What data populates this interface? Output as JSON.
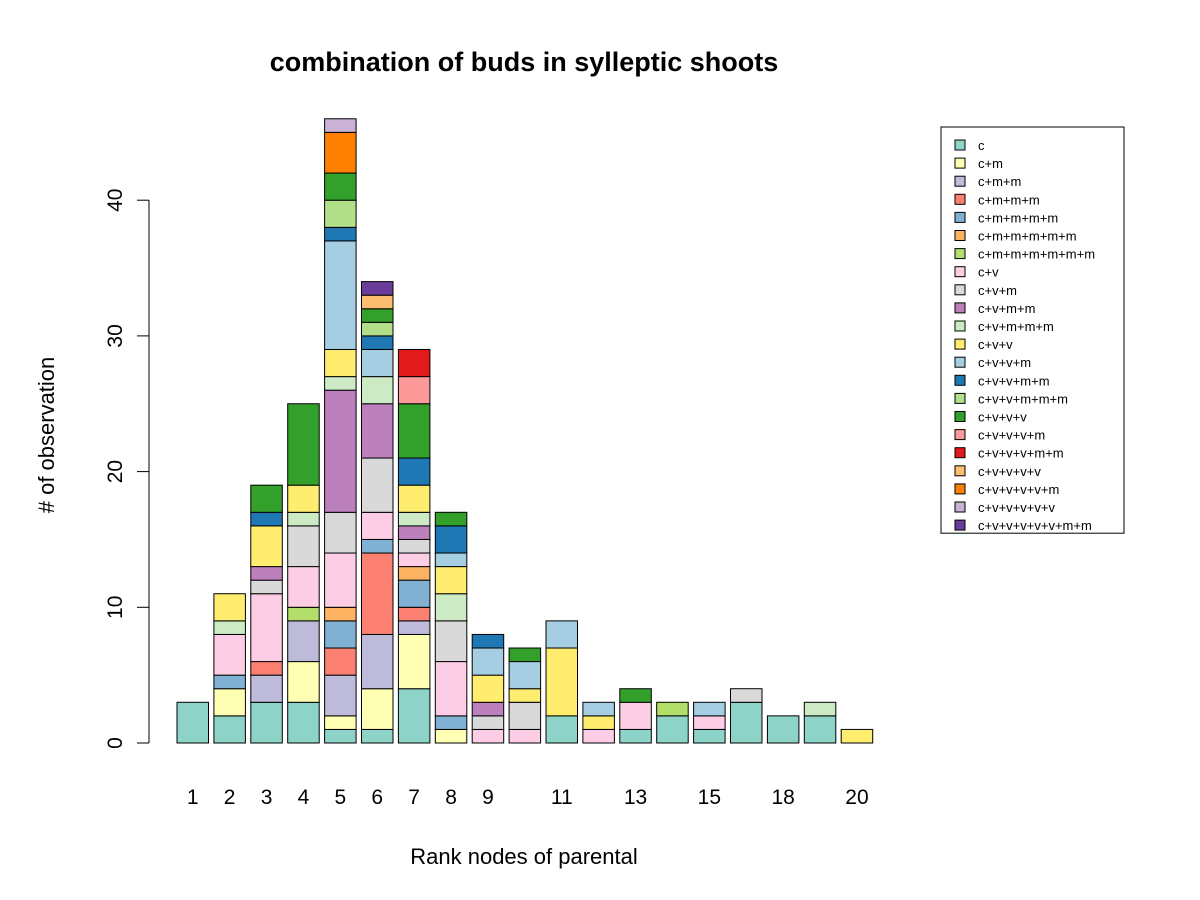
{
  "chart_data": {
    "type": "bar",
    "stacked": true,
    "title": "combination of buds in sylleptic  shoots",
    "xlabel": "Rank nodes of parental",
    "ylabel": "# of observation",
    "ylim": [
      0,
      46
    ],
    "y_ticks": [
      0,
      10,
      20,
      30,
      40
    ],
    "categories": [
      "1",
      "2",
      "3",
      "4",
      "5",
      "6",
      "7",
      "8",
      "9",
      "10",
      "11",
      "12",
      "13",
      "14",
      "15",
      "16",
      "18",
      "19",
      "20"
    ],
    "category_tick_labels": [
      "1",
      "2",
      "3",
      "4",
      "5",
      "6",
      "7",
      "8",
      "9",
      "",
      "11",
      "",
      "13",
      "",
      "15",
      "",
      "18",
      "",
      "20"
    ],
    "legend_position": "top-right",
    "series": [
      {
        "name": "c",
        "color": "#8DD3C7",
        "values": [
          3,
          2,
          3,
          3,
          1,
          1,
          4,
          0,
          0,
          0,
          2,
          0,
          1,
          2,
          1,
          3,
          2,
          2,
          0
        ]
      },
      {
        "name": "c+m",
        "color": "#FFFFB3",
        "values": [
          0,
          2,
          0,
          3,
          1,
          3,
          4,
          1,
          0,
          0,
          0,
          0,
          0,
          0,
          0,
          0,
          0,
          0,
          0
        ]
      },
      {
        "name": "c+m+m",
        "color": "#BEBADA",
        "values": [
          0,
          0,
          2,
          3,
          3,
          4,
          1,
          0,
          0,
          0,
          0,
          0,
          0,
          0,
          0,
          0,
          0,
          0,
          0
        ]
      },
      {
        "name": "c+m+m+m",
        "color": "#FB8072",
        "values": [
          0,
          0,
          1,
          0,
          2,
          6,
          1,
          0,
          0,
          0,
          0,
          0,
          0,
          0,
          0,
          0,
          0,
          0,
          0
        ]
      },
      {
        "name": "c+m+m+m+m",
        "color": "#80B1D3",
        "values": [
          0,
          1,
          0,
          0,
          2,
          1,
          2,
          1,
          0,
          0,
          0,
          0,
          0,
          0,
          0,
          0,
          0,
          0,
          0
        ]
      },
      {
        "name": "c+m+m+m+m+m",
        "color": "#FDB462",
        "values": [
          0,
          0,
          0,
          0,
          1,
          0,
          1,
          0,
          0,
          0,
          0,
          0,
          0,
          0,
          0,
          0,
          0,
          0,
          0
        ]
      },
      {
        "name": "c+m+m+m+m+m+m",
        "color": "#B3DE69",
        "values": [
          0,
          0,
          0,
          1,
          0,
          0,
          0,
          0,
          0,
          0,
          0,
          0,
          0,
          1,
          0,
          0,
          0,
          0,
          0
        ]
      },
      {
        "name": "c+v",
        "color": "#FCCDE5",
        "values": [
          0,
          3,
          5,
          3,
          4,
          2,
          1,
          4,
          1,
          1,
          0,
          1,
          2,
          0,
          1,
          0,
          0,
          0,
          0
        ]
      },
      {
        "name": "c+v+m",
        "color": "#D9D9D9",
        "values": [
          0,
          0,
          1,
          3,
          3,
          4,
          1,
          3,
          1,
          2,
          0,
          0,
          0,
          0,
          0,
          1,
          0,
          0,
          0
        ]
      },
      {
        "name": "c+v+m+m",
        "color": "#BC80BD",
        "values": [
          0,
          0,
          1,
          0,
          9,
          4,
          1,
          0,
          1,
          0,
          0,
          0,
          0,
          0,
          0,
          0,
          0,
          0,
          0
        ]
      },
      {
        "name": "c+v+m+m+m",
        "color": "#CCEBC5",
        "values": [
          0,
          1,
          0,
          1,
          1,
          2,
          1,
          2,
          0,
          0,
          0,
          0,
          0,
          0,
          0,
          0,
          0,
          1,
          0
        ]
      },
      {
        "name": "c+v+v",
        "color": "#FFED6F",
        "values": [
          0,
          2,
          3,
          2,
          2,
          0,
          2,
          2,
          2,
          1,
          5,
          1,
          0,
          0,
          0,
          0,
          0,
          0,
          1
        ]
      },
      {
        "name": "c+v+v+m",
        "color": "#A6CEE3",
        "values": [
          0,
          0,
          0,
          0,
          8,
          2,
          0,
          1,
          2,
          2,
          2,
          1,
          0,
          0,
          1,
          0,
          0,
          0,
          0
        ]
      },
      {
        "name": "c+v+v+m+m",
        "color": "#1F78B4",
        "values": [
          0,
          0,
          1,
          0,
          1,
          1,
          2,
          2,
          1,
          0,
          0,
          0,
          0,
          0,
          0,
          0,
          0,
          0,
          0
        ]
      },
      {
        "name": "c+v+v+m+m+m",
        "color": "#B2DF8A",
        "values": [
          0,
          0,
          0,
          0,
          2,
          1,
          0,
          0,
          0,
          0,
          0,
          0,
          0,
          0,
          0,
          0,
          0,
          0,
          0
        ]
      },
      {
        "name": "c+v+v+v",
        "color": "#33A02C",
        "values": [
          0,
          0,
          2,
          6,
          2,
          1,
          4,
          1,
          0,
          1,
          0,
          0,
          1,
          0,
          0,
          0,
          0,
          0,
          0
        ]
      },
      {
        "name": "c+v+v+v+m",
        "color": "#FB9A99",
        "values": [
          0,
          0,
          0,
          0,
          0,
          0,
          2,
          0,
          0,
          0,
          0,
          0,
          0,
          0,
          0,
          0,
          0,
          0,
          0
        ]
      },
      {
        "name": "c+v+v+v+m+m",
        "color": "#E31A1C",
        "values": [
          0,
          0,
          0,
          0,
          0,
          0,
          2,
          0,
          0,
          0,
          0,
          0,
          0,
          0,
          0,
          0,
          0,
          0,
          0
        ]
      },
      {
        "name": "c+v+v+v+v",
        "color": "#FDBF6F",
        "values": [
          0,
          0,
          0,
          0,
          0,
          1,
          0,
          0,
          0,
          0,
          0,
          0,
          0,
          0,
          0,
          0,
          0,
          0,
          0
        ]
      },
      {
        "name": "c+v+v+v+v+m",
        "color": "#FF7F00",
        "values": [
          0,
          0,
          0,
          0,
          3,
          0,
          0,
          0,
          0,
          0,
          0,
          0,
          0,
          0,
          0,
          0,
          0,
          0,
          0
        ]
      },
      {
        "name": "c+v+v+v+v+v",
        "color": "#CAB2D6",
        "values": [
          0,
          0,
          0,
          0,
          1,
          0,
          0,
          0,
          0,
          0,
          0,
          0,
          0,
          0,
          0,
          0,
          0,
          0,
          0
        ]
      },
      {
        "name": "c+v+v+v+v+v+m+m",
        "color": "#6A3D9A",
        "values": [
          0,
          0,
          0,
          0,
          0,
          1,
          0,
          0,
          0,
          0,
          0,
          0,
          0,
          0,
          0,
          0,
          0,
          0,
          0
        ]
      }
    ]
  }
}
